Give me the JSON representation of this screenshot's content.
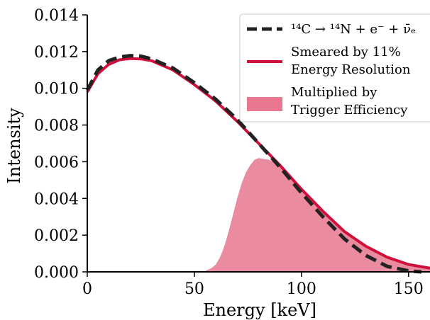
{
  "chart_data": {
    "type": "line",
    "xlabel": "Energy [keV]",
    "ylabel": "Intensity",
    "xlim": [
      0,
      160
    ],
    "ylim": [
      0,
      0.014
    ],
    "xticks": [
      {
        "v": 0,
        "label": "0"
      },
      {
        "v": 50,
        "label": "50"
      },
      {
        "v": 100,
        "label": "100"
      },
      {
        "v": 150,
        "label": "150"
      }
    ],
    "yticks": [
      {
        "v": 0.0,
        "label": "0.000"
      },
      {
        "v": 0.002,
        "label": "0.002"
      },
      {
        "v": 0.004,
        "label": "0.004"
      },
      {
        "v": 0.006,
        "label": "0.006"
      },
      {
        "v": 0.008,
        "label": "0.008"
      },
      {
        "v": 0.01,
        "label": "0.010"
      },
      {
        "v": 0.012,
        "label": "0.012"
      },
      {
        "v": 0.014,
        "label": "0.014"
      }
    ],
    "grid": false,
    "legend_placement": "top-right",
    "series": [
      {
        "name": "¹⁴C → ¹⁴N + e⁻ + ν̄ₑ",
        "style": "dashed",
        "color": "#222222",
        "x": [
          0,
          5,
          10,
          15,
          20,
          25,
          30,
          40,
          50,
          60,
          70,
          80,
          90,
          100,
          110,
          120,
          130,
          140,
          150,
          156
        ],
        "y": [
          0.0099,
          0.011,
          0.0115,
          0.0117,
          0.01178,
          0.01175,
          0.0116,
          0.0111,
          0.0103,
          0.0094,
          0.0083,
          0.007,
          0.0057,
          0.0043,
          0.003,
          0.0018,
          0.0009,
          0.0003,
          5e-05,
          0.0
        ]
      },
      {
        "name_lines": [
          "Smeared by 11%",
          "Energy Resolution"
        ],
        "style": "solid",
        "color": "#d0103a",
        "x": [
          0,
          5,
          10,
          15,
          20,
          25,
          30,
          40,
          50,
          60,
          70,
          80,
          90,
          100,
          110,
          120,
          130,
          140,
          150,
          160
        ],
        "y": [
          0.0098,
          0.0108,
          0.0113,
          0.01155,
          0.01162,
          0.0116,
          0.0115,
          0.011,
          0.0102,
          0.0093,
          0.0082,
          0.007,
          0.0058,
          0.0045,
          0.0033,
          0.0022,
          0.0014,
          0.0008,
          0.0004,
          0.0002
        ]
      },
      {
        "name_lines": [
          "Multiplied by",
          "Trigger Efficiency"
        ],
        "style": "filled",
        "color": "#e8778f",
        "x": [
          50,
          55,
          58,
          60,
          62,
          64,
          66,
          68,
          70,
          72,
          74,
          76,
          78,
          80,
          85,
          90,
          100,
          110,
          120,
          130,
          140,
          150,
          160
        ],
        "y": [
          0.0,
          5e-05,
          0.0002,
          0.0004,
          0.0008,
          0.0014,
          0.0022,
          0.0031,
          0.004,
          0.0048,
          0.0054,
          0.0058,
          0.0061,
          0.0062,
          0.0061,
          0.0058,
          0.0045,
          0.0033,
          0.0022,
          0.0014,
          0.0008,
          0.0004,
          0.0002
        ]
      }
    ]
  }
}
